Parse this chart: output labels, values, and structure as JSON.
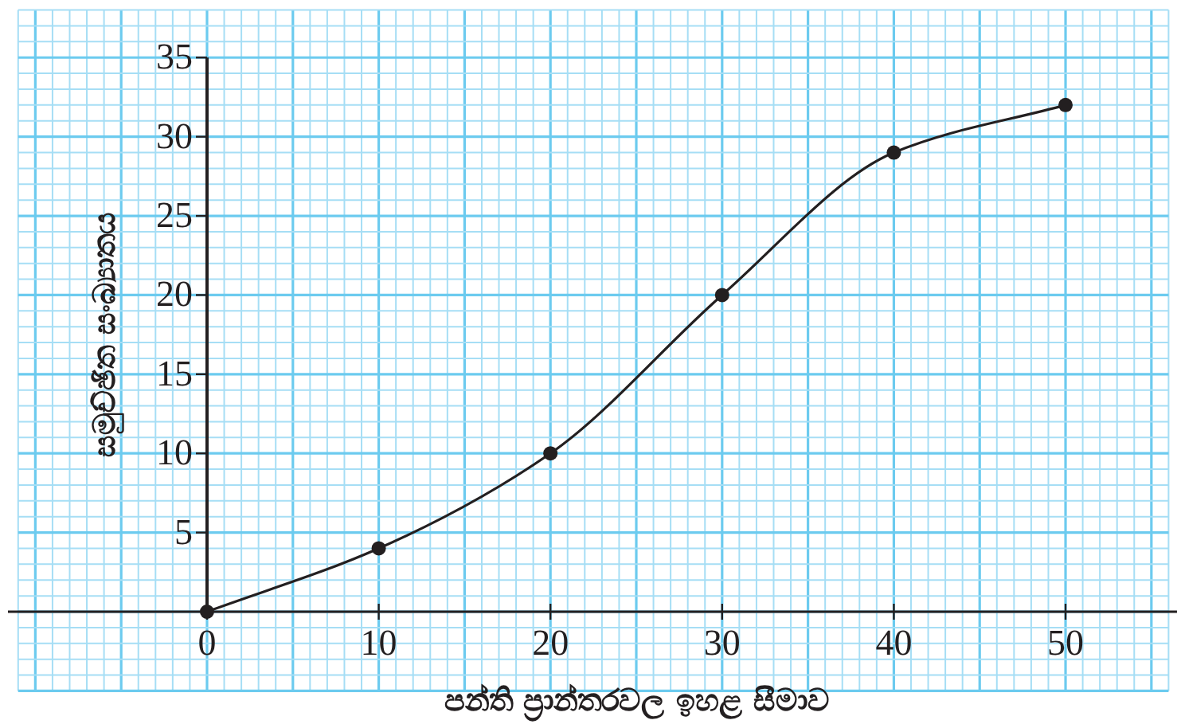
{
  "chart_data": {
    "type": "line",
    "xlabel": "පන්ති ප්‍රාන්තරවල ඉහළ සීමාව",
    "ylabel": "සමුච්ඡිත සංඛ්‍යාතය",
    "x": [
      0,
      10,
      20,
      30,
      40,
      50
    ],
    "values": [
      0,
      4,
      10,
      20,
      29,
      32
    ],
    "color": "#231f20",
    "marker": "circle",
    "grid": true,
    "xlim": [
      -11,
      56
    ],
    "ylim": [
      -5,
      38
    ],
    "xticks": [
      {
        "value": -11,
        "label": null
      },
      {
        "value": -10,
        "label": null
      },
      {
        "value": -9,
        "label": null
      },
      {
        "value": -8,
        "label": null
      },
      {
        "value": -7,
        "label": null
      },
      {
        "value": -6,
        "label": null
      },
      {
        "value": -5,
        "label": null
      },
      {
        "value": -4,
        "label": null
      },
      {
        "value": -3,
        "label": null
      },
      {
        "value": -2,
        "label": null
      },
      {
        "value": -1,
        "label": null
      },
      0,
      {
        "value": 1,
        "label": null
      },
      {
        "value": 2,
        "label": null
      },
      {
        "value": 3,
        "label": null
      },
      {
        "value": 4,
        "label": null
      },
      {
        "value": 5,
        "label": null
      },
      {
        "value": 6,
        "label": null
      },
      {
        "value": 7,
        "label": null
      },
      {
        "value": 8,
        "label": null
      },
      {
        "value": 9,
        "label": null
      },
      10,
      {
        "value": 11,
        "label": null
      },
      {
        "value": 12,
        "label": null
      },
      {
        "value": 13,
        "label": null
      },
      {
        "value": 14,
        "label": null
      },
      {
        "value": 15,
        "label": null
      },
      {
        "value": 16,
        "label": null
      },
      {
        "value": 17,
        "label": null
      },
      {
        "value": 18,
        "label": null
      },
      {
        "value": 19,
        "label": null
      },
      20,
      {
        "value": 21,
        "label": null
      },
      {
        "value": 22,
        "label": null
      },
      {
        "value": 23,
        "label": null
      },
      {
        "value": 24,
        "label": null
      },
      {
        "value": 25,
        "label": null
      },
      {
        "value": 26,
        "label": null
      },
      {
        "value": 27,
        "label": null
      },
      {
        "value": 28,
        "label": null
      },
      {
        "value": 29,
        "label": null
      },
      30,
      {
        "value": 31,
        "label": null
      },
      {
        "value": 32,
        "label": null
      },
      {
        "value": 33,
        "label": null
      },
      {
        "value": 34,
        "label": null
      },
      {
        "value": 35,
        "label": null
      },
      {
        "value": 36,
        "label": null
      },
      {
        "value": 37,
        "label": null
      },
      {
        "value": 38,
        "label": null
      },
      {
        "value": 39,
        "label": null
      },
      40,
      {
        "value": 41,
        "label": null
      },
      {
        "value": 42,
        "label": null
      },
      {
        "value": 43,
        "label": null
      },
      {
        "value": 44,
        "label": null
      },
      {
        "value": 45,
        "label": null
      },
      {
        "value": 46,
        "label": null
      },
      {
        "value": 47,
        "label": null
      },
      {
        "value": 48,
        "label": null
      },
      {
        "value": 49,
        "label": null
      },
      50,
      {
        "value": 51,
        "label": null
      },
      {
        "value": 52,
        "label": null
      },
      {
        "value": 53,
        "label": null
      },
      {
        "value": 54,
        "label": null
      },
      {
        "value": 55,
        "label": null
      },
      {
        "value": 56,
        "label": null
      }
    ],
    "yticks": [
      {
        "value": -5,
        "label": null
      },
      {
        "value": -4,
        "label": null
      },
      {
        "value": -3,
        "label": null
      },
      {
        "value": -2,
        "label": null
      },
      {
        "value": -1,
        "label": null
      },
      {
        "value": 0,
        "label": null
      },
      {
        "value": 1,
        "label": null
      },
      {
        "value": 2,
        "label": null
      },
      {
        "value": 3,
        "label": null
      },
      {
        "value": 4,
        "label": null
      },
      5,
      {
        "value": 6,
        "label": null
      },
      {
        "value": 7,
        "label": null
      },
      {
        "value": 8,
        "label": null
      },
      {
        "value": 9,
        "label": null
      },
      10,
      {
        "value": 11,
        "label": null
      },
      {
        "value": 12,
        "label": null
      },
      {
        "value": 13,
        "label": null
      },
      {
        "value": 14,
        "label": null
      },
      15,
      {
        "value": 16,
        "label": null
      },
      {
        "value": 17,
        "label": null
      },
      {
        "value": 18,
        "label": null
      },
      {
        "value": 19,
        "label": null
      },
      20,
      {
        "value": 21,
        "label": null
      },
      {
        "value": 22,
        "label": null
      },
      {
        "value": 23,
        "label": null
      },
      {
        "value": 24,
        "label": null
      },
      25,
      {
        "value": 26,
        "label": null
      },
      {
        "value": 27,
        "label": null
      },
      {
        "value": 28,
        "label": null
      },
      {
        "value": 29,
        "label": null
      },
      30,
      {
        "value": 31,
        "label": null
      },
      {
        "value": 32,
        "label": null
      },
      {
        "value": 33,
        "label": null
      },
      {
        "value": 34,
        "label": null
      },
      35,
      {
        "value": 36,
        "label": null
      },
      {
        "value": 37,
        "label": null
      },
      {
        "value": 38,
        "label": null
      }
    ]
  }
}
